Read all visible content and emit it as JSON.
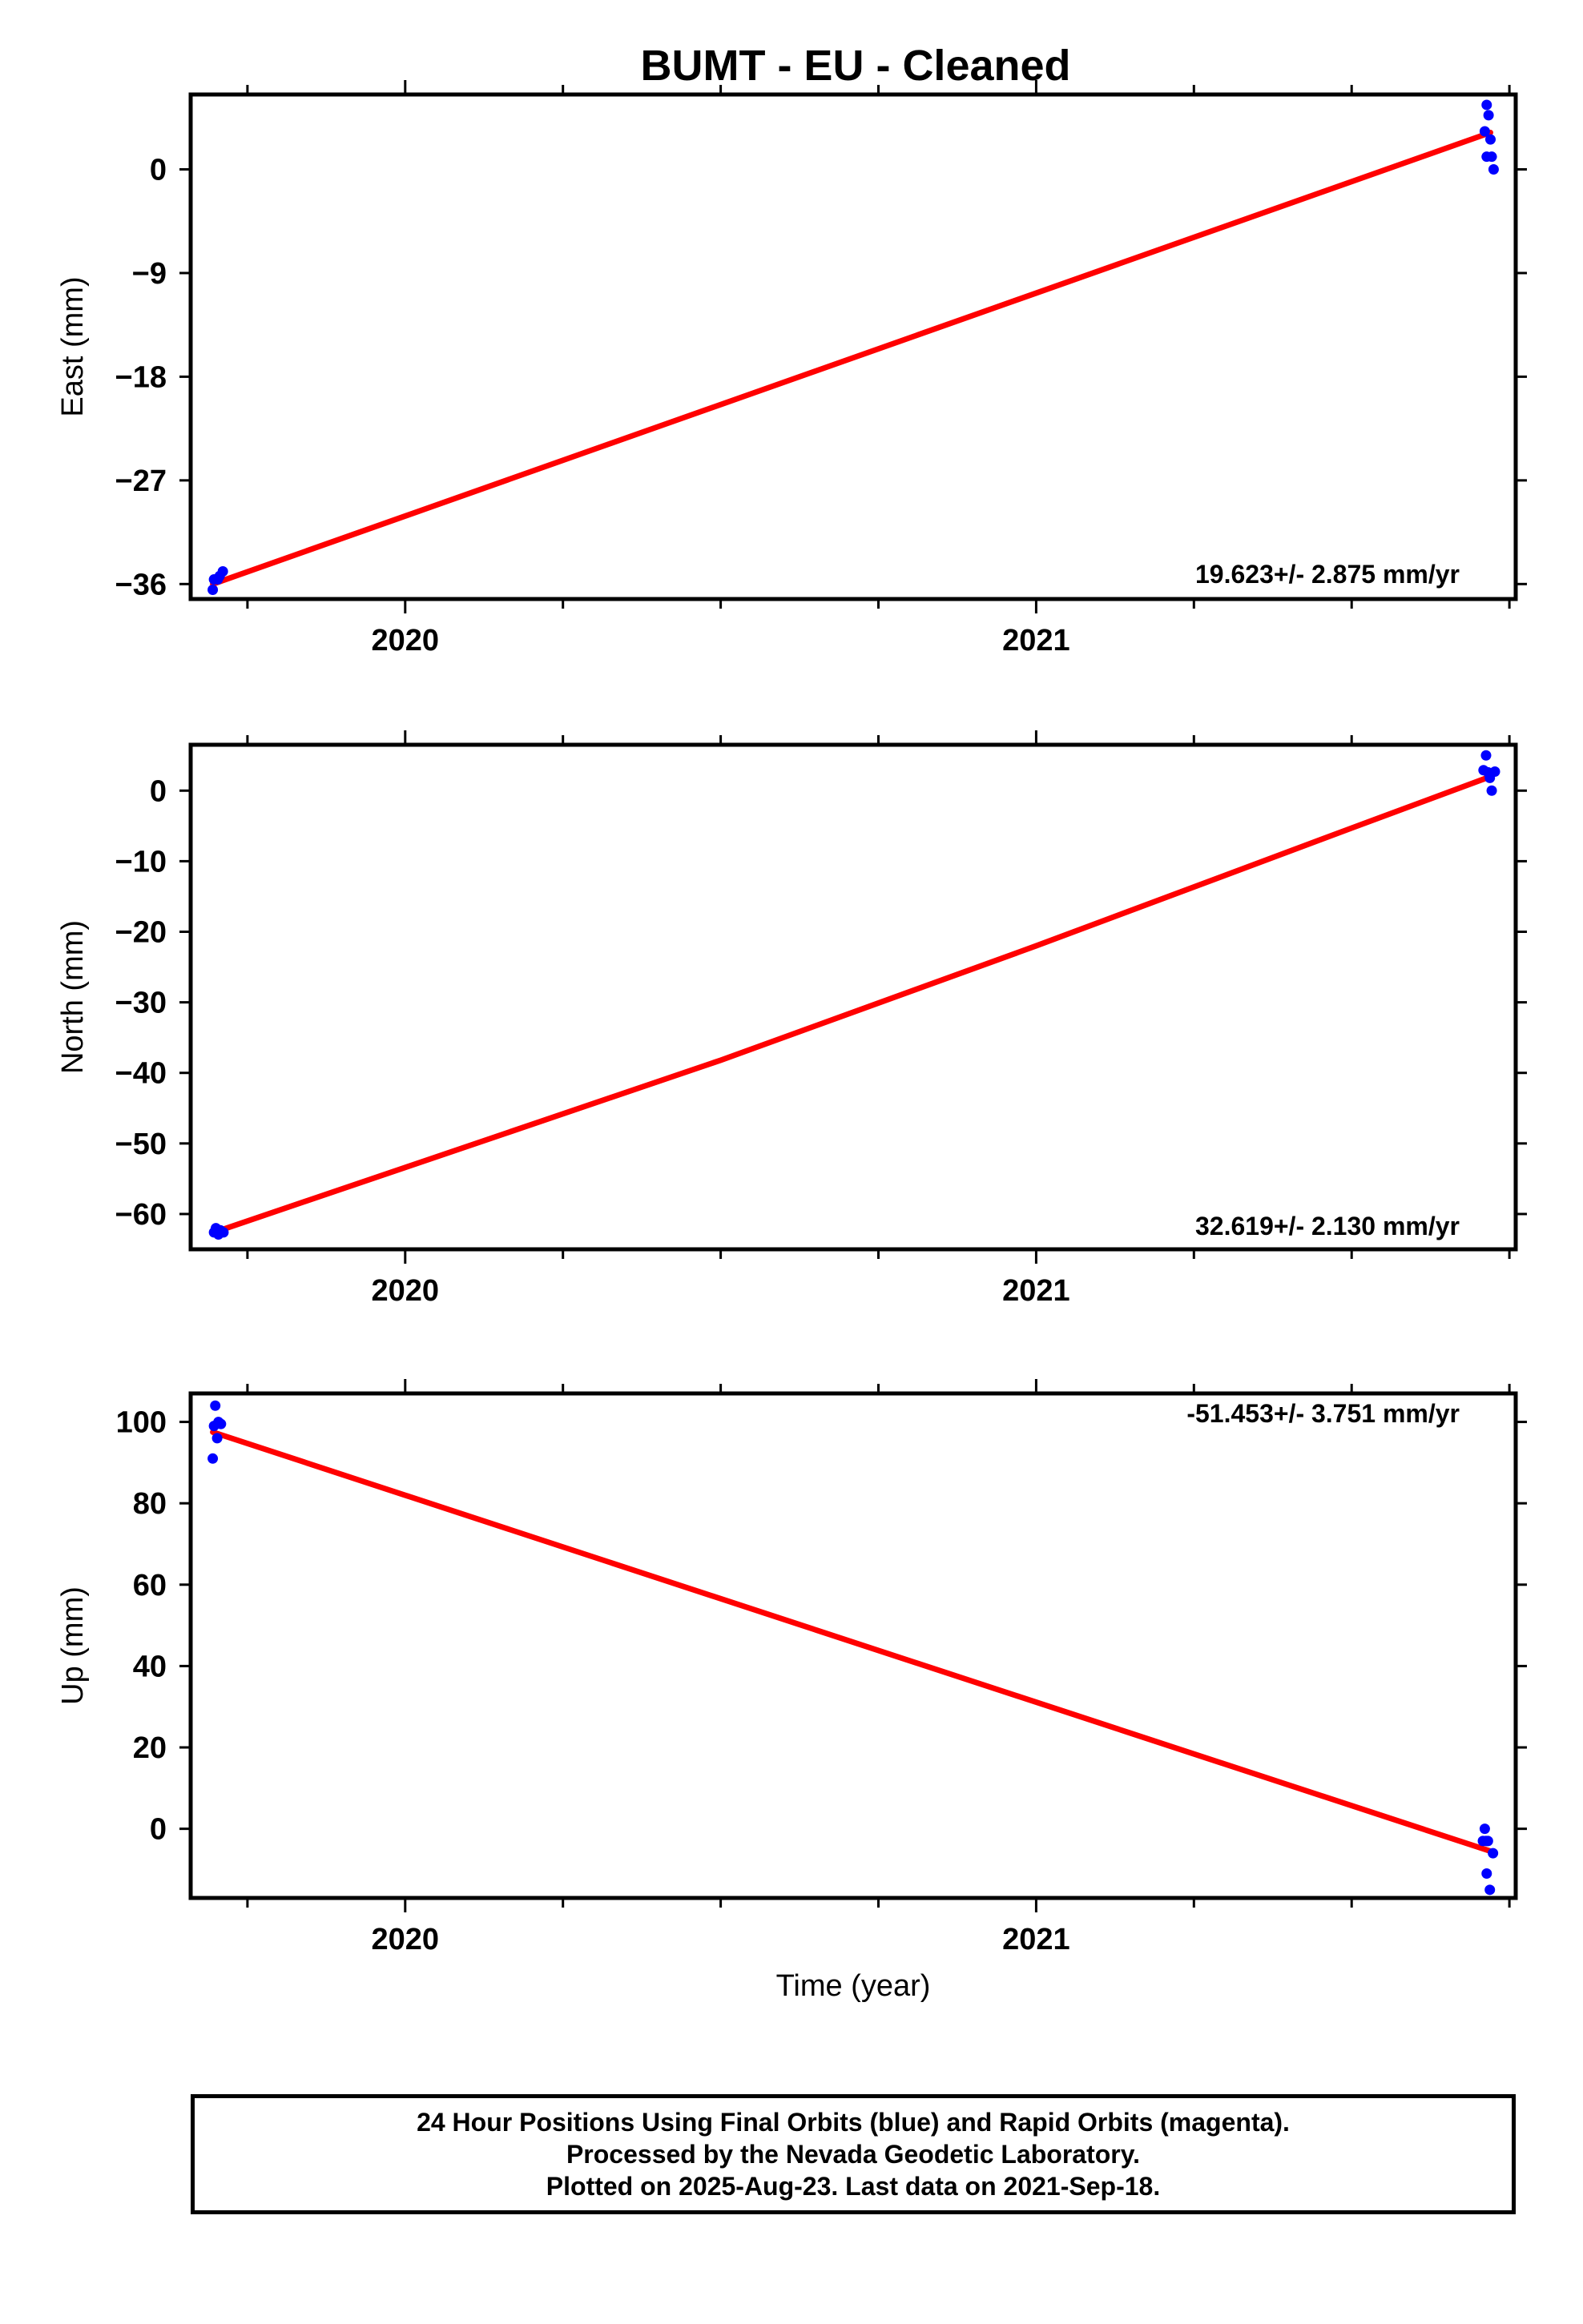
{
  "title": "BUMT  - EU - Cleaned",
  "colors": {
    "final_orbits": "#0000ff",
    "trend": "#ff0000",
    "frame": "#000000"
  },
  "chart_data": [
    {
      "type": "scatter",
      "name": "east",
      "ylabel": "East (mm)",
      "xlabel": "",
      "xlim": [
        2019.66,
        2021.76
      ],
      "ylim": [
        -37.3,
        6.5
      ],
      "yticks": [
        -36,
        -27,
        -18,
        -9,
        0
      ],
      "yticklabels": [
        "−36",
        "−27",
        "−18",
        "−9",
        "0"
      ],
      "xticks": [
        2020,
        2021
      ],
      "xticklabels": [
        "2020",
        "2021"
      ],
      "rate_text": "19.623+/- 2.875 mm/yr",
      "points": [
        {
          "x": 2019.695,
          "y": -36.5
        },
        {
          "x": 2019.697,
          "y": -35.6
        },
        {
          "x": 2019.703,
          "y": -35.6
        },
        {
          "x": 2019.706,
          "y": -35.3
        },
        {
          "x": 2019.711,
          "y": -34.9
        },
        {
          "x": 2021.711,
          "y": 3.3
        },
        {
          "x": 2021.714,
          "y": 5.6
        },
        {
          "x": 2021.717,
          "y": 4.7
        },
        {
          "x": 2021.72,
          "y": 2.6
        },
        {
          "x": 2021.714,
          "y": 1.1
        },
        {
          "x": 2021.722,
          "y": 1.1
        },
        {
          "x": 2021.725,
          "y": 0
        }
      ],
      "trend": {
        "x": [
          2019.695,
          2021.72
        ],
        "y": [
          -36.0,
          3.2
        ]
      }
    },
    {
      "type": "scatter",
      "name": "north",
      "ylabel": "North (mm)",
      "xlabel": "",
      "xlim": [
        2019.66,
        2021.76
      ],
      "ylim": [
        -65,
        6.5
      ],
      "yticks": [
        -60,
        -50,
        -40,
        -30,
        -20,
        -10,
        0
      ],
      "yticklabels": [
        "−60",
        "−50",
        "−40",
        "−30",
        "−20",
        "−10",
        "0"
      ],
      "xticks": [
        2020,
        2021
      ],
      "xticklabels": [
        "2020",
        "2021"
      ],
      "rate_text": "32.619+/- 2.130 mm/yr",
      "points": [
        {
          "x": 2019.697,
          "y": -62.6
        },
        {
          "x": 2019.7,
          "y": -62.0
        },
        {
          "x": 2019.704,
          "y": -62.9
        },
        {
          "x": 2019.707,
          "y": -62.3
        },
        {
          "x": 2019.712,
          "y": -62.6
        },
        {
          "x": 2021.709,
          "y": 2.9
        },
        {
          "x": 2021.713,
          "y": 5.0
        },
        {
          "x": 2021.716,
          "y": 2.6
        },
        {
          "x": 2021.719,
          "y": 1.8
        },
        {
          "x": 2021.722,
          "y": 0
        },
        {
          "x": 2021.727,
          "y": 2.7
        }
      ],
      "trend": {
        "x": [
          2019.697,
          2020.0,
          2020.5,
          2021.0,
          2021.5,
          2021.72
        ],
        "y": [
          -62.6,
          -53.4,
          -38.2,
          -22.0,
          -5.3,
          2.0
        ]
      }
    },
    {
      "type": "scatter",
      "name": "up",
      "ylabel": "Up (mm)",
      "xlabel": "Time (year)",
      "xlim": [
        2019.66,
        2021.76
      ],
      "ylim": [
        -17,
        107
      ],
      "yticks": [
        0,
        20,
        40,
        60,
        80,
        100
      ],
      "yticklabels": [
        "0",
        "20",
        "40",
        "60",
        "80",
        "100"
      ],
      "xticks": [
        2020,
        2021
      ],
      "xticklabels": [
        "2020",
        "2021"
      ],
      "rate_text": "-51.453+/- 3.751 mm/yr",
      "points": [
        {
          "x": 2019.695,
          "y": 91
        },
        {
          "x": 2019.697,
          "y": 99
        },
        {
          "x": 2019.699,
          "y": 104
        },
        {
          "x": 2019.702,
          "y": 96
        },
        {
          "x": 2019.704,
          "y": 100
        },
        {
          "x": 2019.708,
          "y": 99.5
        },
        {
          "x": 2021.708,
          "y": -3
        },
        {
          "x": 2021.711,
          "y": 0
        },
        {
          "x": 2021.713,
          "y": -3
        },
        {
          "x": 2021.716,
          "y": -3
        },
        {
          "x": 2021.714,
          "y": -11
        },
        {
          "x": 2021.719,
          "y": -15
        },
        {
          "x": 2021.724,
          "y": -6
        }
      ],
      "trend": {
        "x": [
          2019.695,
          2021.72
        ],
        "y": [
          97.5,
          -5.5
        ]
      }
    }
  ],
  "caption": {
    "lines": [
      "24 Hour Positions Using Final Orbits (blue) and Rapid Orbits (magenta).",
      "Processed by the Nevada Geodetic Laboratory.",
      "Plotted on 2025-Aug-23. Last data on 2021-Sep-18."
    ]
  }
}
